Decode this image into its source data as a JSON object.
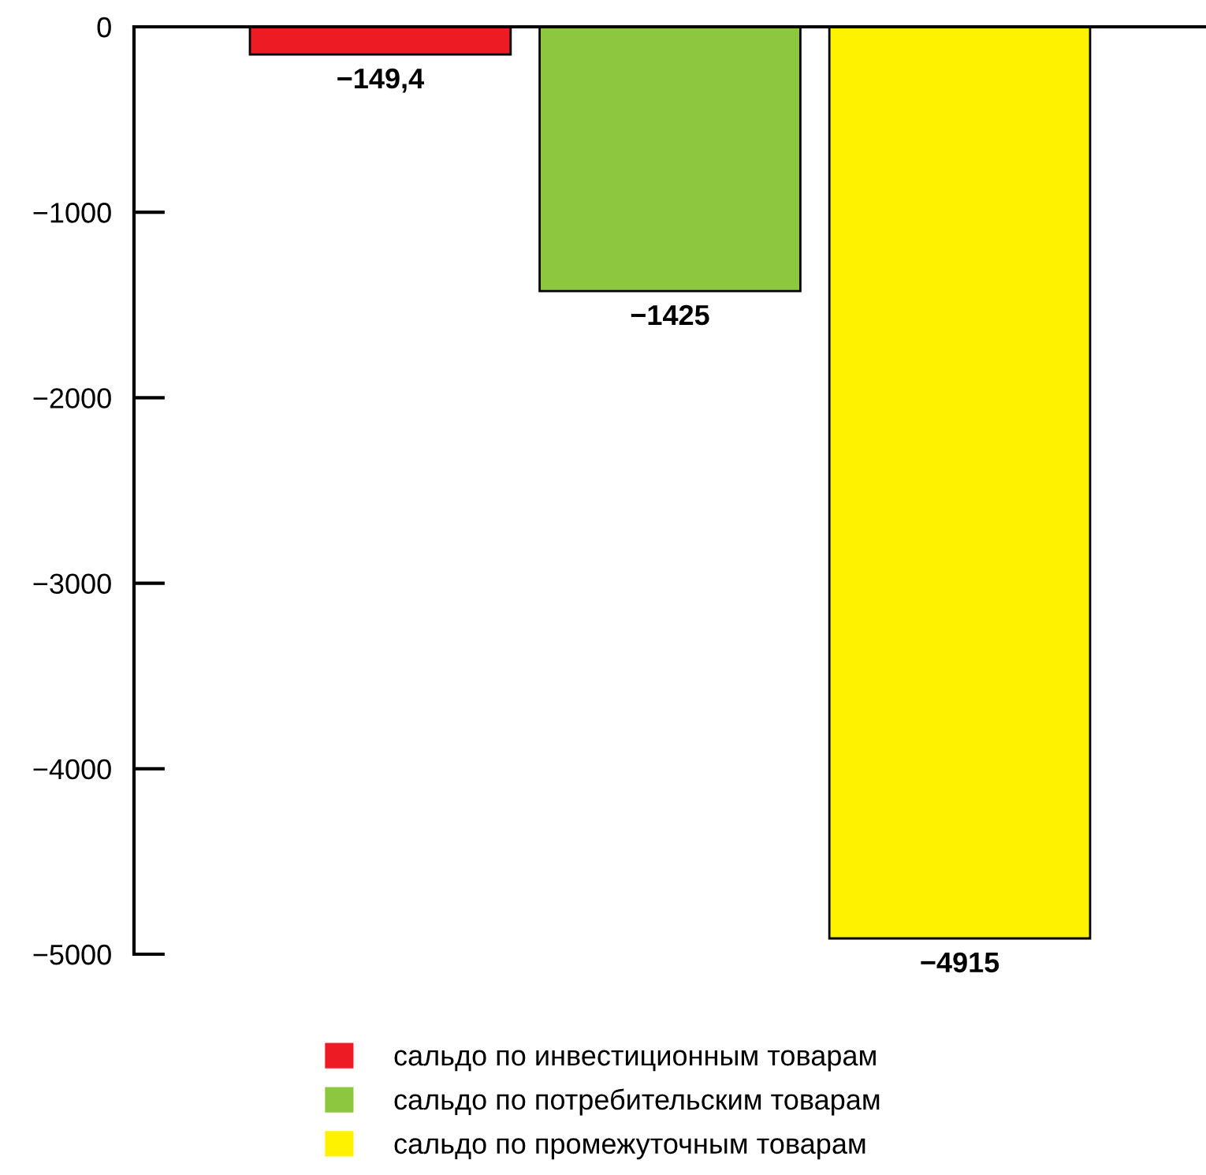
{
  "chart_data": {
    "type": "bar",
    "categories": [
      null
    ],
    "series": [
      {
        "name": "сальдо по инвестиционным товарам",
        "color": "#ed1c24",
        "values": [
          -149.4
        ],
        "value_labels": [
          "−149,4"
        ]
      },
      {
        "name": "сальдо по потребительским товарам",
        "color": "#8dc63f",
        "values": [
          -1425
        ],
        "value_labels": [
          "−1425"
        ]
      },
      {
        "name": "сальдо по промежуточным товарам",
        "color": "#fff200",
        "values": [
          -4915
        ],
        "value_labels": [
          "−4915"
        ]
      }
    ],
    "ylim": [
      -5000,
      0
    ],
    "yticks": [
      {
        "value": 0,
        "label": "0"
      },
      {
        "value": -1000,
        "label": "−1000"
      },
      {
        "value": -2000,
        "label": "−2000"
      },
      {
        "value": -3000,
        "label": "−3000"
      },
      {
        "value": -4000,
        "label": "−4000"
      },
      {
        "value": -5000,
        "label": "−5000"
      }
    ],
    "grid": false,
    "legend": "bottom"
  }
}
